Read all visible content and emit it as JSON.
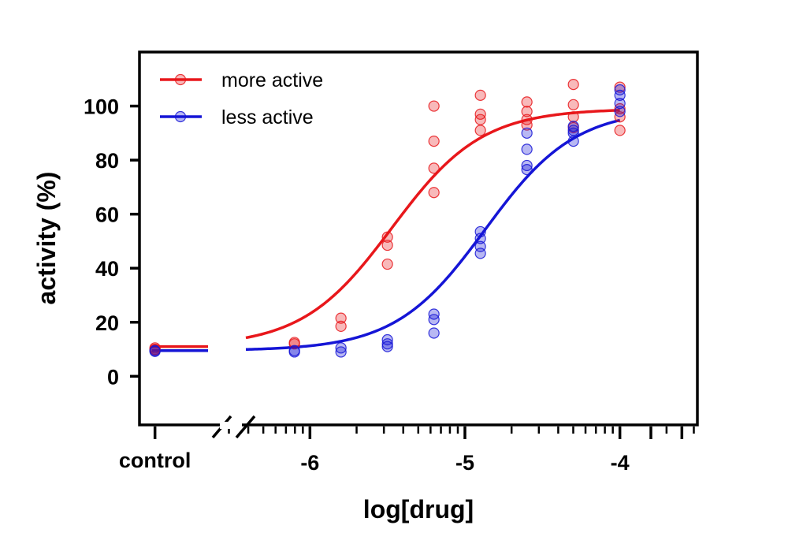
{
  "chart_data": {
    "type": "scatter",
    "title": "",
    "xlabel": "log[drug]",
    "ylabel": "activity (%)",
    "xlim": [
      -7.1,
      -3.5
    ],
    "ylim": [
      -18,
      120
    ],
    "x_ticks": [
      -6,
      -5,
      -4
    ],
    "x_tick_labels": [
      "-6",
      "-5",
      "-4"
    ],
    "control_label": "control",
    "control_x": -7.0,
    "y_ticks": [
      0,
      20,
      40,
      60,
      80,
      100
    ],
    "y_tick_labels": [
      "0",
      "20",
      "40",
      "60",
      "80",
      "100"
    ],
    "grid": false,
    "legend_position": "top-left",
    "series": [
      {
        "name": "more active",
        "color": "#e8171b",
        "control_values": [
          10.5,
          10,
          9.8
        ],
        "points": [
          {
            "x": -6.1,
            "y": 12.5
          },
          {
            "x": -6.1,
            "y": 12
          },
          {
            "x": -5.8,
            "y": 21.5
          },
          {
            "x": -5.8,
            "y": 18.5
          },
          {
            "x": -5.5,
            "y": 51.5
          },
          {
            "x": -5.5,
            "y": 48.5
          },
          {
            "x": -5.5,
            "y": 41.5
          },
          {
            "x": -5.2,
            "y": 100
          },
          {
            "x": -5.2,
            "y": 87
          },
          {
            "x": -5.2,
            "y": 77
          },
          {
            "x": -5.2,
            "y": 68
          },
          {
            "x": -4.9,
            "y": 104
          },
          {
            "x": -4.9,
            "y": 97
          },
          {
            "x": -4.9,
            "y": 95
          },
          {
            "x": -4.9,
            "y": 91
          },
          {
            "x": -4.6,
            "y": 101.5
          },
          {
            "x": -4.6,
            "y": 98
          },
          {
            "x": -4.6,
            "y": 95
          },
          {
            "x": -4.6,
            "y": 93
          },
          {
            "x": -4.3,
            "y": 108
          },
          {
            "x": -4.3,
            "y": 100.5
          },
          {
            "x": -4.3,
            "y": 96
          },
          {
            "x": -4.3,
            "y": 92
          },
          {
            "x": -4.0,
            "y": 107
          },
          {
            "x": -4.0,
            "y": 99
          },
          {
            "x": -4.0,
            "y": 96
          },
          {
            "x": -4.0,
            "y": 91
          }
        ],
        "fit": {
          "bottom": 11,
          "top": 99,
          "log_ec50": -5.47,
          "hill": 1.5
        }
      },
      {
        "name": "less active",
        "color": "#1515d6",
        "control_values": [
          9.5,
          9.2
        ],
        "points": [
          {
            "x": -6.1,
            "y": 9.5
          },
          {
            "x": -6.1,
            "y": 9
          },
          {
            "x": -5.8,
            "y": 10.5
          },
          {
            "x": -5.8,
            "y": 9
          },
          {
            "x": -5.5,
            "y": 13.5
          },
          {
            "x": -5.5,
            "y": 12
          },
          {
            "x": -5.5,
            "y": 11
          },
          {
            "x": -5.2,
            "y": 23
          },
          {
            "x": -5.2,
            "y": 21
          },
          {
            "x": -5.2,
            "y": 16
          },
          {
            "x": -4.9,
            "y": 53.5
          },
          {
            "x": -4.9,
            "y": 51
          },
          {
            "x": -4.9,
            "y": 48
          },
          {
            "x": -4.9,
            "y": 45.5
          },
          {
            "x": -4.6,
            "y": 90
          },
          {
            "x": -4.6,
            "y": 84
          },
          {
            "x": -4.6,
            "y": 78
          },
          {
            "x": -4.6,
            "y": 76.5
          },
          {
            "x": -4.3,
            "y": 92.5
          },
          {
            "x": -4.3,
            "y": 91
          },
          {
            "x": -4.3,
            "y": 90
          },
          {
            "x": -4.3,
            "y": 87
          },
          {
            "x": -4.0,
            "y": 106
          },
          {
            "x": -4.0,
            "y": 104
          },
          {
            "x": -4.0,
            "y": 101
          },
          {
            "x": -4.0,
            "y": 98
          }
        ],
        "fit": {
          "bottom": 9.5,
          "top": 99,
          "log_ec50": -4.87,
          "hill": 1.5
        }
      }
    ]
  }
}
